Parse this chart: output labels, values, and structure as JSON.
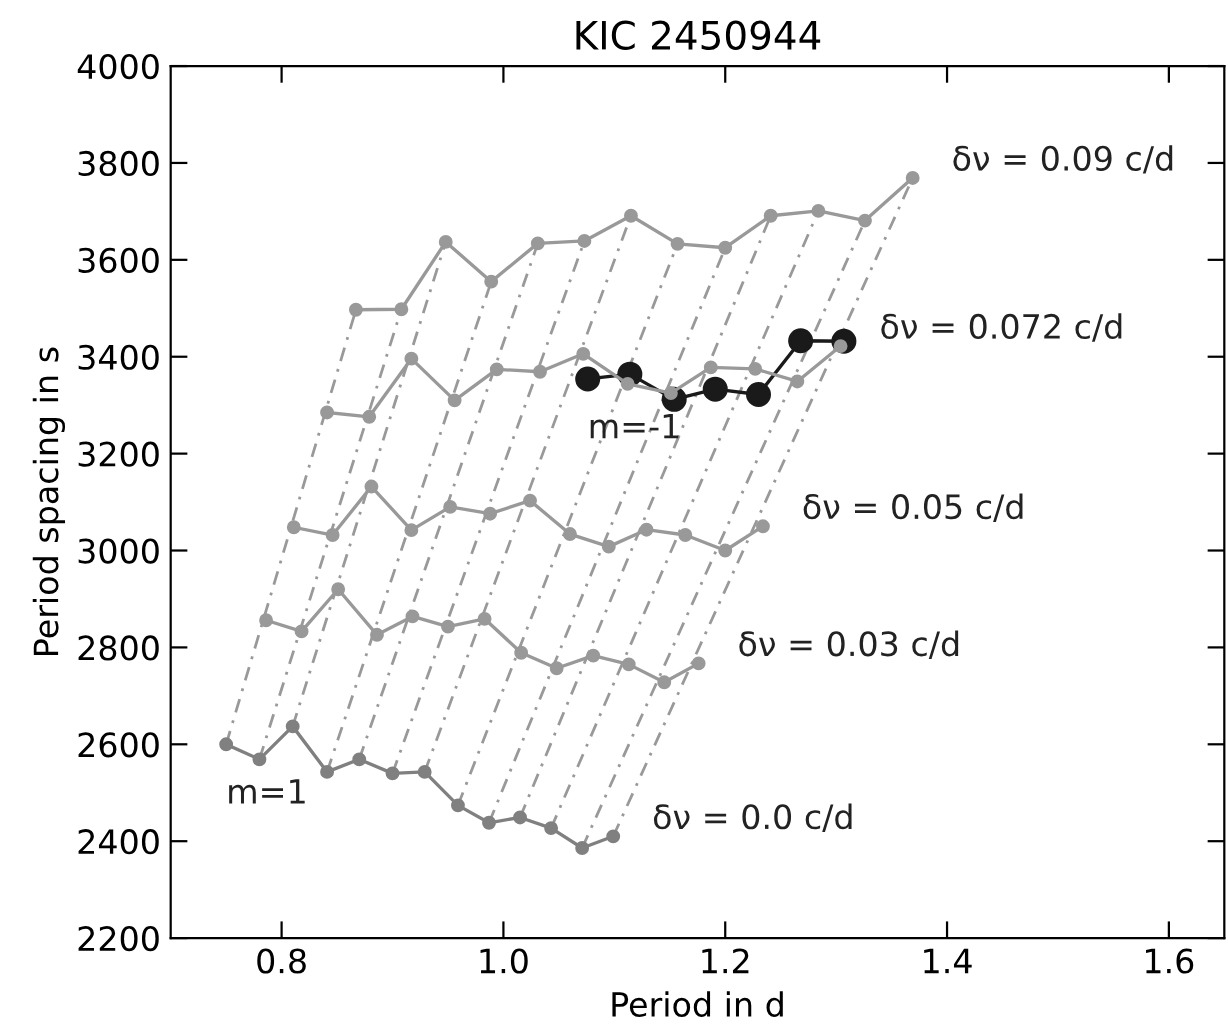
{
  "chart_data": {
    "type": "line",
    "title": "KIC 2450944",
    "xlabel": "Period in d",
    "ylabel": "Period spacing in s",
    "xlim": [
      0.7,
      1.65
    ],
    "xticks": [
      {
        "value": 0.8,
        "label": "0.8"
      },
      {
        "value": 1.0,
        "label": "1.0"
      },
      {
        "value": 1.2,
        "label": "1.2"
      },
      {
        "value": 1.4,
        "label": "1.4"
      },
      {
        "value": 1.6,
        "label": "1.6"
      }
    ],
    "ylim": [
      2200,
      4000
    ],
    "yticks": [
      2200,
      2400,
      2600,
      2800,
      3000,
      3200,
      3400,
      3600,
      3800,
      4000
    ],
    "grid": false,
    "legend": false,
    "marker": "circle",
    "series": [
      {
        "name": "δν = 0.0 c/d",
        "color": "#808080",
        "x": [
          0.75,
          0.78,
          0.81,
          0.841,
          0.87,
          0.9,
          0.929,
          0.959,
          0.987,
          1.015,
          1.043,
          1.071,
          1.099
        ],
        "values": [
          2600,
          2569,
          2637,
          2543,
          2569,
          2540,
          2543,
          2474,
          2438,
          2449,
          2427,
          2386,
          2410
        ]
      },
      {
        "name": "δν = 0.03 c/d",
        "color": "#999999",
        "x": [
          0.786,
          0.818,
          0.851,
          0.886,
          0.918,
          0.95,
          0.983,
          1.016,
          1.048,
          1.081,
          1.113,
          1.145,
          1.176
        ],
        "values": [
          2856,
          2833,
          2920,
          2826,
          2864,
          2843,
          2859,
          2789,
          2757,
          2783,
          2765,
          2728,
          2767
        ]
      },
      {
        "name": "δν = 0.05 c/d",
        "color": "#999999",
        "x": [
          0.811,
          0.846,
          0.881,
          0.917,
          0.952,
          0.988,
          1.024,
          1.06,
          1.095,
          1.129,
          1.164,
          1.2,
          1.234
        ],
        "values": [
          3048,
          3032,
          3132,
          3042,
          3090,
          3076,
          3103,
          3034,
          3008,
          3043,
          3032,
          3000,
          3050
        ]
      },
      {
        "name": "δν = 0.072 c/d",
        "color": "#999999",
        "x": [
          0.841,
          0.879,
          0.917,
          0.956,
          0.994,
          1.033,
          1.072,
          1.112,
          1.151,
          1.187,
          1.227,
          1.265,
          1.304
        ],
        "values": [
          3285,
          3276,
          3396,
          3310,
          3374,
          3369,
          3406,
          3344,
          3325,
          3378,
          3375,
          3349,
          3422
        ]
      },
      {
        "name": "δν = 0.09 c/d",
        "color": "#999999",
        "x": [
          0.867,
          0.908,
          0.948,
          0.989,
          1.031,
          1.073,
          1.115,
          1.157,
          1.2,
          1.241,
          1.284,
          1.326,
          1.369
        ],
        "values": [
          3497,
          3498,
          3637,
          3555,
          3634,
          3639,
          3691,
          3633,
          3625,
          3691,
          3701,
          3681,
          3769
        ]
      },
      {
        "color": "#1a1a1a",
        "x": [
          1.076,
          1.114,
          1.154,
          1.191,
          1.23,
          1.268,
          1.307
        ],
        "values": [
          3354,
          3364,
          3312,
          3333,
          3322,
          3433,
          3432
        ]
      },
      {
        "color": "#999999",
        "marker": "none",
        "line_style": "dashed",
        "x": [
          0.75,
          0.867
        ],
        "values": [
          2600,
          3497
        ]
      },
      {
        "color": "#999999",
        "marker": "none",
        "line_style": "dashed",
        "x": [
          0.78,
          0.908
        ],
        "values": [
          2569,
          3498
        ]
      },
      {
        "color": "#999999",
        "marker": "none",
        "line_style": "dashed",
        "x": [
          0.81,
          0.948
        ],
        "values": [
          2637,
          3637
        ]
      },
      {
        "color": "#999999",
        "marker": "none",
        "line_style": "dashed",
        "x": [
          0.841,
          0.989
        ],
        "values": [
          2543,
          3555
        ]
      },
      {
        "color": "#999999",
        "marker": "none",
        "line_style": "dashed",
        "x": [
          0.87,
          1.031
        ],
        "values": [
          2569,
          3634
        ]
      },
      {
        "color": "#999999",
        "marker": "none",
        "line_style": "dashed",
        "x": [
          0.9,
          1.073
        ],
        "values": [
          2540,
          3639
        ]
      },
      {
        "color": "#999999",
        "marker": "none",
        "line_style": "dashed",
        "x": [
          0.929,
          1.115
        ],
        "values": [
          2543,
          3691
        ]
      },
      {
        "color": "#999999",
        "marker": "none",
        "line_style": "dashed",
        "x": [
          0.959,
          1.157
        ],
        "values": [
          2474,
          3633
        ]
      },
      {
        "color": "#999999",
        "marker": "none",
        "line_style": "dashed",
        "x": [
          0.987,
          1.2
        ],
        "values": [
          2438,
          3625
        ]
      },
      {
        "color": "#999999",
        "marker": "none",
        "line_style": "dashed",
        "x": [
          1.015,
          1.241
        ],
        "values": [
          2449,
          3691
        ]
      },
      {
        "color": "#999999",
        "marker": "none",
        "line_style": "dashed",
        "x": [
          1.043,
          1.284
        ],
        "values": [
          2427,
          3701
        ]
      },
      {
        "color": "#999999",
        "marker": "none",
        "line_style": "dashed",
        "x": [
          1.071,
          1.326
        ],
        "values": [
          2386,
          3681
        ]
      },
      {
        "color": "#999999",
        "marker": "none",
        "line_style": "dashed",
        "x": [
          1.099,
          1.369
        ],
        "values": [
          2410,
          3769
        ]
      }
    ],
    "annotations": [
      {
        "text": "m=1",
        "x": 0.75,
        "y": 2600
      },
      {
        "text": "m=-1",
        "x": 1.076,
        "y": 3354
      }
    ]
  }
}
